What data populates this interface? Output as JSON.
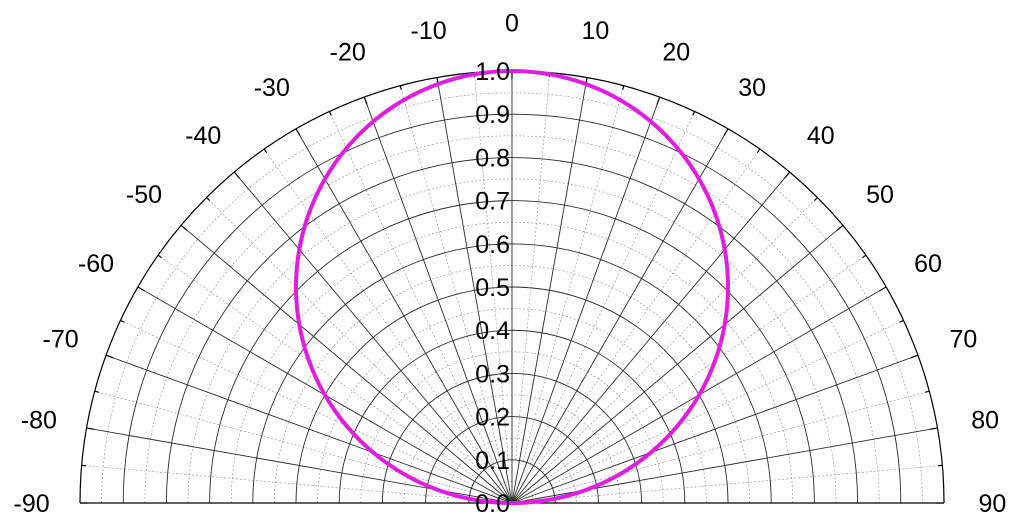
{
  "chart_data": {
    "type": "polar",
    "coordinate_system": "polar half-plane",
    "angle_unit": "degrees",
    "angle_range": [
      -90,
      90
    ],
    "angle_ticks": [
      -90,
      -80,
      -70,
      -60,
      -50,
      -40,
      -30,
      -20,
      -10,
      0,
      10,
      20,
      30,
      40,
      50,
      60,
      70,
      80,
      90
    ],
    "angle_tick_labels": [
      "-90",
      "-80",
      "-70",
      "-60",
      "-50",
      "-40",
      "-30",
      "-20",
      "-10",
      "0",
      "10",
      "20",
      "30",
      "40",
      "50",
      "60",
      "70",
      "80",
      "90"
    ],
    "radial_range": [
      0,
      1.0
    ],
    "radial_ticks": [
      0.0,
      0.1,
      0.2,
      0.3,
      0.4,
      0.5,
      0.6,
      0.7,
      0.8,
      0.9,
      1.0
    ],
    "radial_tick_labels": [
      "0.0",
      "0.1",
      "0.2",
      "0.3",
      "0.4",
      "0.5",
      "0.6",
      "0.7",
      "0.8",
      "0.9",
      "1.0"
    ],
    "grid": true,
    "minor_grid": true,
    "series": [
      {
        "color": "#e01ee0",
        "function": "r = cos(theta)",
        "theta": [
          -90,
          -80,
          -70,
          -60,
          -50,
          -40,
          -30,
          -20,
          -10,
          0,
          10,
          20,
          30,
          40,
          50,
          60,
          70,
          80,
          90
        ],
        "r": [
          0.0,
          0.174,
          0.342,
          0.5,
          0.643,
          0.766,
          0.866,
          0.94,
          0.985,
          1.0,
          0.985,
          0.94,
          0.866,
          0.766,
          0.643,
          0.5,
          0.342,
          0.174,
          0.0
        ]
      }
    ]
  }
}
